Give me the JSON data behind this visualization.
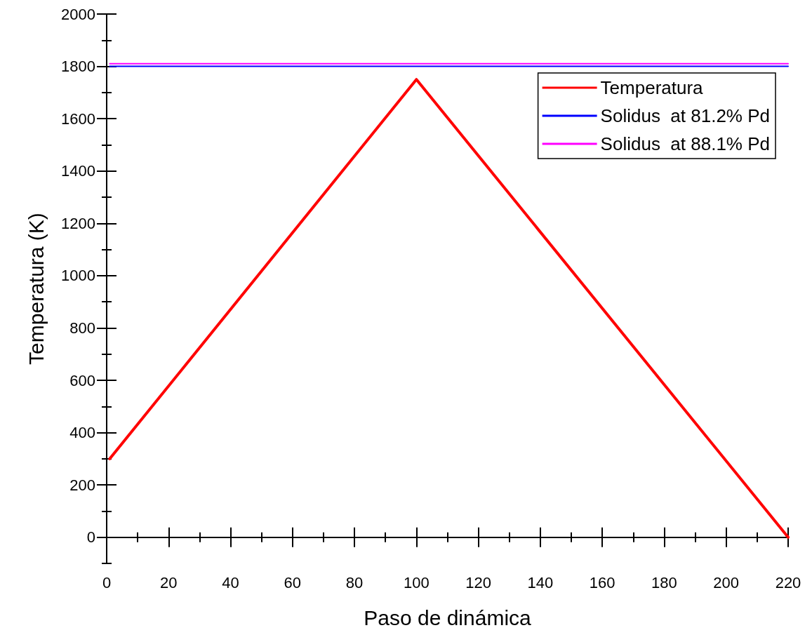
{
  "chart_data": {
    "type": "line",
    "xlabel": "Paso de dinámica",
    "ylabel": "Temperatura (K)",
    "xlim": [
      0,
      220
    ],
    "xticks": [
      0,
      20,
      40,
      60,
      80,
      100,
      120,
      140,
      160,
      180,
      200,
      220
    ],
    "ylim": [
      -100,
      2000
    ],
    "yticks": [
      0,
      200,
      400,
      600,
      800,
      1000,
      1200,
      1400,
      1600,
      1800,
      2000
    ],
    "series": [
      {
        "name": "Temperatura",
        "color": "#ff0000",
        "x": [
          1,
          100,
          220
        ],
        "values": [
          300,
          1750,
          0
        ]
      },
      {
        "name": "Solidus  at 81.2% Pd",
        "color": "#0000ff",
        "x": [
          1,
          220
        ],
        "values": [
          1800,
          1800
        ]
      },
      {
        "name": "Solidus  at 88.1% Pd",
        "color": "#ff00ff",
        "x": [
          1,
          220
        ],
        "values": [
          1810,
          1810
        ]
      }
    ],
    "legend": "top right",
    "grid": false,
    "marker": "none",
    "line_style": "solid"
  }
}
